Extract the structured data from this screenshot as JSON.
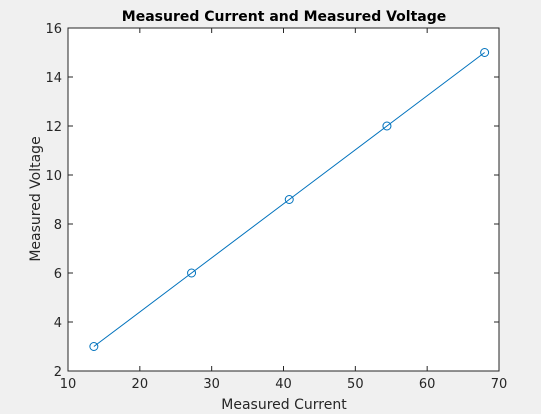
{
  "chart_data": {
    "type": "line",
    "title": "Measured Current and Measured Voltage",
    "xlabel": "Measured Current",
    "ylabel": "Measured Voltage",
    "xlim": [
      10,
      70
    ],
    "ylim": [
      2,
      16
    ],
    "xticks": [
      "10",
      "20",
      "30",
      "40",
      "50",
      "60",
      "70"
    ],
    "yticks": [
      "2",
      "4",
      "6",
      "8",
      "10",
      "12",
      "14",
      "16"
    ],
    "grid": false,
    "marker": "circle",
    "series": [
      {
        "x": [
          13.6,
          27.2,
          40.8,
          54.4,
          68.0
        ],
        "y": [
          3,
          6,
          9,
          12,
          15
        ],
        "color": "#0072BD"
      }
    ]
  }
}
